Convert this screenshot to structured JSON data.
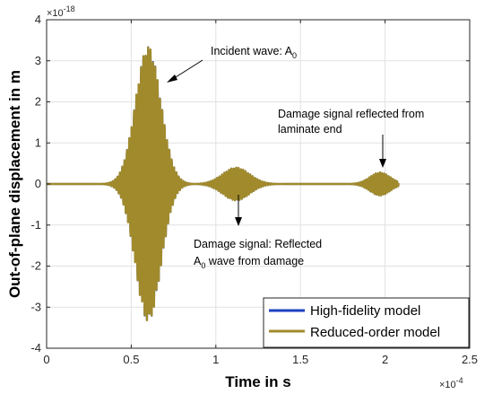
{
  "chart_data": {
    "type": "line",
    "xlabel": "Time in s",
    "ylabel": "Out-of-plane displacement in m",
    "xlim": [
      0,
      2.5
    ],
    "ylim": [
      -4,
      4
    ],
    "x_exponent": "×10",
    "x_exponent_power": "-4",
    "y_exponent": "×10",
    "y_exponent_power": "-18",
    "xticks": [
      0,
      0.5,
      1,
      1.5,
      2,
      2.5
    ],
    "xtick_labels": [
      "0",
      "0.5",
      "1",
      "1.5",
      "2",
      "2.5"
    ],
    "yticks": [
      -4,
      -3,
      -2,
      -1,
      0,
      1,
      2,
      3,
      4
    ],
    "ytick_labels": [
      "-4",
      "-3",
      "-2",
      "-1",
      "0",
      "1",
      "2",
      "3",
      "4"
    ],
    "grid": true,
    "legend_position": "bottom-right",
    "series": [
      {
        "name": "High-fidelity model",
        "color": "#1f3fbf"
      },
      {
        "name": "Reduced-order model",
        "color": "#a08a2c"
      }
    ],
    "packets": [
      {
        "center": 0.6,
        "amp": 3.35,
        "sigma": 0.075,
        "freq": 9.0
      },
      {
        "center": 1.12,
        "amp": 0.4,
        "sigma": 0.08,
        "freq": 9.0
      },
      {
        "center": 1.97,
        "amp": 0.28,
        "sigma": 0.06,
        "freq": 10.0
      }
    ],
    "x_range": [
      0,
      2.08
    ],
    "annotations": [
      {
        "lines": [
          "Incident wave: A",
          "0"
        ],
        "type": "subscript"
      },
      {
        "lines": [
          "Damage signal reflected from",
          "laminate end"
        ],
        "type": "plain"
      },
      {
        "lines": [
          "Damage signal: Reflected",
          "A",
          "0",
          " wave from damage"
        ],
        "type": "mixed"
      }
    ]
  },
  "annot": {
    "incident_main": "Incident wave: A",
    "incident_sub": "0",
    "end_line1": "Damage signal reflected from",
    "end_line2": "laminate end",
    "damage_line1": "Damage signal: Reflected",
    "damage_line2_a": "A",
    "damage_line2_sub": "0",
    "damage_line2_rest": " wave from damage"
  },
  "legend": {
    "item1": "High-fidelity model",
    "item2": "Reduced-order model"
  }
}
